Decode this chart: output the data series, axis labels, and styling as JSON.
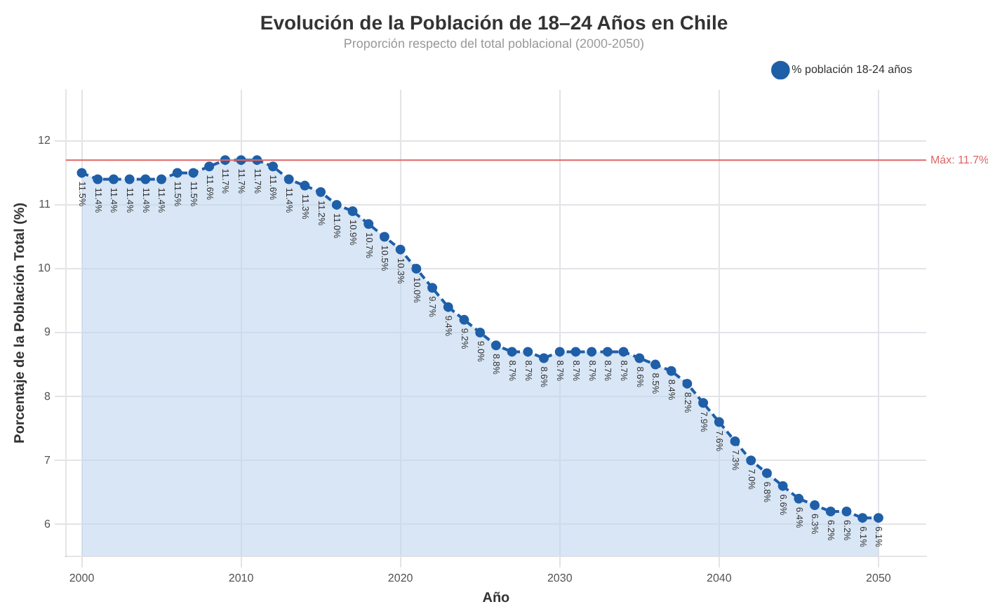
{
  "chart_data": {
    "type": "area",
    "title": "Evolución de la Población de 18–24 Años en Chile",
    "subtitle": "Proporción respecto del total poblacional (2000-2050)",
    "xlabel": "Año",
    "ylabel": "Porcentaje de la Población Total (%)",
    "x": [
      2000,
      2001,
      2002,
      2003,
      2004,
      2005,
      2006,
      2007,
      2008,
      2009,
      2010,
      2011,
      2012,
      2013,
      2014,
      2015,
      2016,
      2017,
      2018,
      2019,
      2020,
      2021,
      2022,
      2023,
      2024,
      2025,
      2026,
      2027,
      2028,
      2029,
      2030,
      2031,
      2032,
      2033,
      2034,
      2035,
      2036,
      2037,
      2038,
      2039,
      2040,
      2041,
      2042,
      2043,
      2044,
      2045,
      2046,
      2047,
      2048,
      2049,
      2050
    ],
    "series": [
      {
        "name": "% población 18-24 años",
        "color": "#1f5fa8",
        "values": [
          11.5,
          11.4,
          11.4,
          11.4,
          11.4,
          11.4,
          11.5,
          11.5,
          11.6,
          11.7,
          11.7,
          11.7,
          11.6,
          11.4,
          11.3,
          11.2,
          11.0,
          10.9,
          10.7,
          10.5,
          10.3,
          10.0,
          9.7,
          9.4,
          9.2,
          9.0,
          8.8,
          8.7,
          8.7,
          8.6,
          8.7,
          8.7,
          8.7,
          8.7,
          8.7,
          8.6,
          8.5,
          8.4,
          8.2,
          7.9,
          7.6,
          7.3,
          7.0,
          6.8,
          6.6,
          6.4,
          6.3,
          6.2,
          6.2,
          6.1,
          6.1
        ],
        "value_labels": [
          "11.5%",
          "11.4%",
          "11.4%",
          "11.4%",
          "11.4%",
          "11.4%",
          "11.5%",
          "11.5%",
          "11.6%",
          "11.7%",
          "11.7%",
          "11.7%",
          "11.6%",
          "11.4%",
          "11.3%",
          "11.2%",
          "11.0%",
          "10.9%",
          "10.7%",
          "10.5%",
          "10.3%",
          "10.0%",
          "9.7%",
          "9.4%",
          "9.2%",
          "9.0%",
          "8.8%",
          "8.7%",
          "8.7%",
          "8.6%",
          "8.7%",
          "8.7%",
          "8.7%",
          "8.7%",
          "8.7%",
          "8.6%",
          "8.5%",
          "8.4%",
          "8.2%",
          "7.9%",
          "7.6%",
          "7.3%",
          "7.0%",
          "6.8%",
          "6.6%",
          "6.4%",
          "6.3%",
          "6.2%",
          "6.2%",
          "6.1%",
          "6.1%"
        ]
      }
    ],
    "xlim": [
      1999,
      2053
    ],
    "xticks": [
      2000,
      2010,
      2020,
      2030,
      2040,
      2050
    ],
    "ylim": [
      5.5,
      12.8
    ],
    "yticks": [
      6,
      7,
      8,
      9,
      10,
      11,
      12
    ],
    "ref_lines": [
      {
        "axis": "y",
        "value": 11.7,
        "label": "Máx: 11.7%",
        "color": "#e06666",
        "line_style": "solid"
      }
    ],
    "grid": true,
    "legend": "top right",
    "marker": "circle",
    "line_style": "dashed"
  }
}
